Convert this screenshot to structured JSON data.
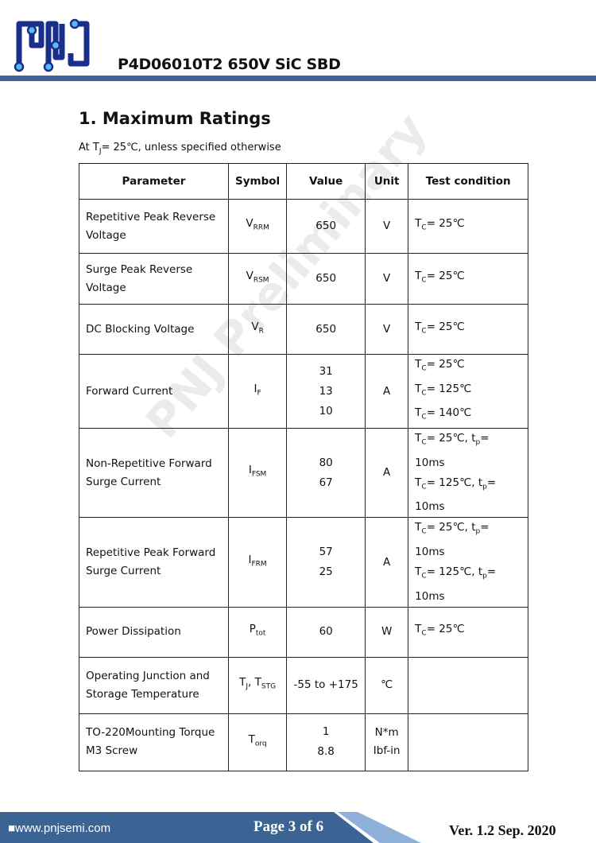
{
  "header": {
    "logo_text": "PNJ",
    "title": "P4D06010T2  650V  SiC SBD"
  },
  "section": {
    "heading": "1. Maximum Ratings",
    "condition": "At TJ= 25℃, unless specified otherwise"
  },
  "table": {
    "headers": [
      "Parameter",
      "Symbol",
      "Value",
      "Unit",
      "Test condition"
    ],
    "rows": [
      {
        "param": [
          "Repetitive Peak Reverse",
          "Voltage"
        ],
        "sym": "V",
        "sub": "RRM",
        "values": [
          "650"
        ],
        "unit": [
          "V"
        ],
        "tests": [
          [
            "C",
            "= 25℃"
          ]
        ]
      },
      {
        "param": [
          "Surge Peak Reverse",
          "Voltage"
        ],
        "sym": "V",
        "sub": "RSM",
        "values": [
          "650"
        ],
        "unit": [
          "V"
        ],
        "tests": [
          [
            "C",
            "= 25℃"
          ]
        ]
      },
      {
        "param": [
          "DC Blocking Voltage"
        ],
        "sym": "V",
        "sub": "R",
        "values": [
          "650"
        ],
        "unit": [
          "V"
        ],
        "tests": [
          [
            "C",
            "= 25℃"
          ]
        ]
      },
      {
        "param": [
          "Forward Current"
        ],
        "sym": "I",
        "sub": "F",
        "values": [
          "31",
          "13",
          "10"
        ],
        "unit": [
          "A"
        ],
        "tests": [
          [
            "C",
            "= 25℃"
          ],
          [
            "C",
            "= 125℃"
          ],
          [
            "C",
            "= 140℃"
          ]
        ]
      },
      {
        "param": [
          "Non-Repetitive Forward",
          "Surge Current"
        ],
        "sym": "I",
        "sub": "FSM",
        "values": [
          "80",
          "67"
        ],
        "unit": [
          "A"
        ],
        "tests": [
          [
            "C",
            "= 25℃, t",
            "p",
            "= 10ms"
          ],
          [
            "C",
            "= 125℃, t",
            "p",
            "= 10ms"
          ]
        ]
      },
      {
        "param": [
          "Repetitive Peak Forward",
          "Surge Current"
        ],
        "sym": "I",
        "sub": "FRM",
        "values": [
          "57",
          "25"
        ],
        "unit": [
          "A"
        ],
        "tests": [
          [
            "C",
            "= 25℃, t",
            "p",
            "= 10ms"
          ],
          [
            "C",
            "= 125℃, t",
            "p",
            "= 10ms"
          ]
        ]
      },
      {
        "param": [
          "Power Dissipation"
        ],
        "sym": "P",
        "sub": "tot",
        "values": [
          "60"
        ],
        "unit": [
          "W"
        ],
        "tests": [
          [
            "C",
            "= 25℃"
          ]
        ]
      },
      {
        "param": [
          "Operating Junction and",
          "Storage Temperature"
        ],
        "sym": "T",
        "sub": "J",
        "sym2": ", T",
        "sub2": "STG",
        "values": [
          "-55 to +175"
        ],
        "unit": [
          "℃"
        ],
        "tests": []
      },
      {
        "param": [
          "TO-220Mounting Torque",
          "M3 Screw"
        ],
        "sym": "T",
        "sub": "orq",
        "values": [
          "1",
          "8.8"
        ],
        "unit": [
          "N*m",
          "Ibf-in"
        ],
        "tests": []
      }
    ]
  },
  "watermark": "PNJ Preliminary",
  "footer": {
    "website": "■www.pnjsemi.com",
    "page": "Page 3 of 6",
    "version": "Ver. 1.2  Sep. 2020"
  },
  "colors": {
    "brand_blue": "#3d6496",
    "logo_blue": "#1a2e8c",
    "logo_dot": "#5bb8f0"
  }
}
